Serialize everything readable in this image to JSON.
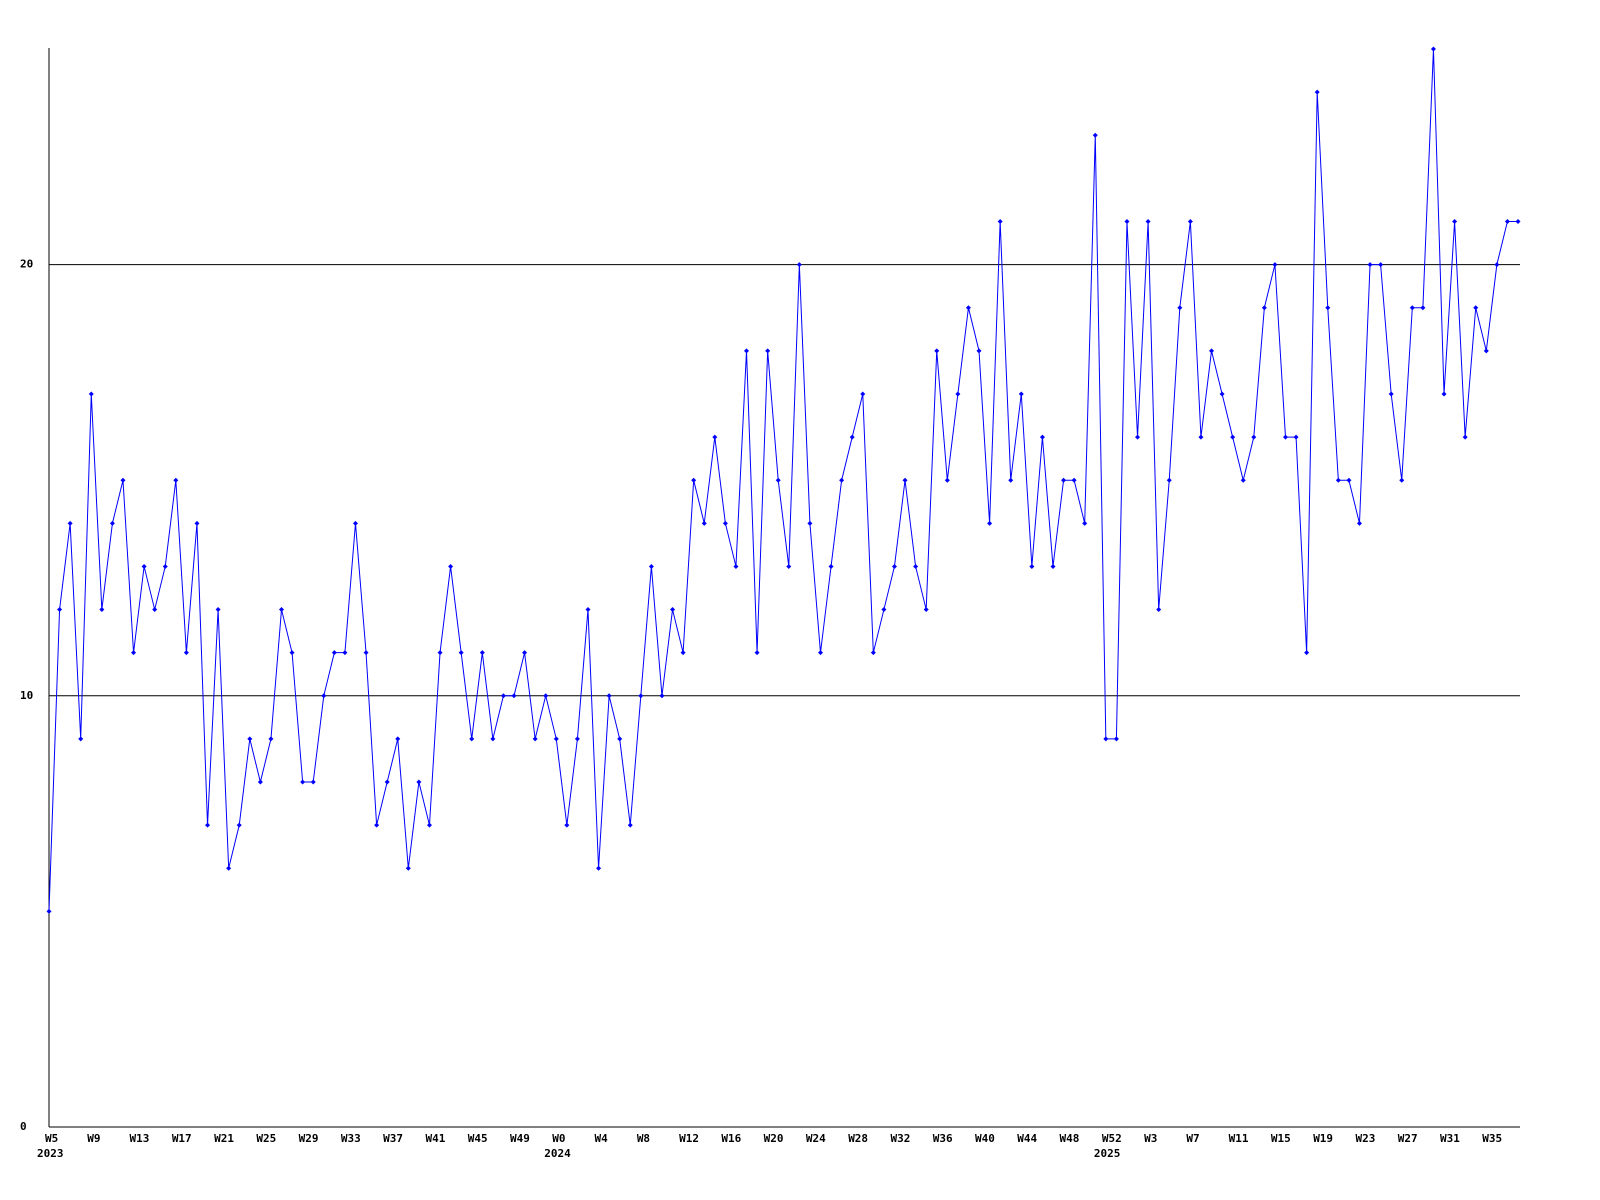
{
  "chart_data": {
    "type": "line",
    "categories": [
      "W5",
      null,
      null,
      null,
      "W9",
      null,
      null,
      null,
      "W13",
      null,
      null,
      null,
      "W17",
      null,
      null,
      null,
      "W21",
      null,
      null,
      null,
      "W25",
      null,
      null,
      null,
      "W29",
      null,
      null,
      null,
      "W33",
      null,
      null,
      null,
      "W37",
      null,
      null,
      null,
      "W41",
      null,
      null,
      null,
      "W45",
      null,
      null,
      null,
      "W49",
      null,
      null,
      null,
      "W0",
      null,
      null,
      null,
      "W4",
      null,
      null,
      null,
      "W8",
      null,
      null,
      null,
      "W12",
      null,
      null,
      null,
      "W16",
      null,
      null,
      null,
      "W20",
      null,
      null,
      null,
      "W24",
      null,
      null,
      null,
      "W28",
      null,
      null,
      null,
      "W32",
      null,
      null,
      null,
      "W36",
      null,
      null,
      null,
      "W40",
      null,
      null,
      null,
      "W44",
      null,
      null,
      null,
      "W48",
      null,
      null,
      null,
      "W52",
      null,
      null,
      null,
      "W3",
      null,
      null,
      null,
      "W7",
      null,
      null,
      null,
      "W11",
      null,
      null,
      null,
      "W15",
      null,
      null,
      null,
      "W19",
      null,
      null,
      null,
      "W23",
      null,
      null,
      null,
      "W27",
      null,
      null,
      null,
      "W31",
      null,
      null,
      null,
      "W35",
      null,
      null,
      null
    ],
    "category_years": [
      "2023",
      null,
      null,
      null,
      null,
      null,
      null,
      null,
      null,
      null,
      null,
      null,
      null,
      null,
      null,
      null,
      null,
      null,
      null,
      null,
      null,
      null,
      null,
      null,
      null,
      null,
      null,
      null,
      null,
      null,
      null,
      null,
      null,
      null,
      null,
      null,
      null,
      null,
      null,
      null,
      null,
      null,
      null,
      null,
      null,
      null,
      null,
      null,
      "2024",
      null,
      null,
      null,
      null,
      null,
      null,
      null,
      null,
      null,
      null,
      null,
      null,
      null,
      null,
      null,
      null,
      null,
      null,
      null,
      null,
      null,
      null,
      null,
      null,
      null,
      null,
      null,
      null,
      null,
      null,
      null,
      null,
      null,
      null,
      null,
      null,
      null,
      null,
      null,
      null,
      null,
      null,
      null,
      null,
      null,
      null,
      null,
      null,
      null,
      null,
      null,
      "2025",
      null,
      null,
      null,
      null,
      null,
      null,
      null,
      null,
      null,
      null,
      null,
      null,
      null,
      null,
      null,
      null,
      null,
      null,
      null,
      null,
      null,
      null,
      null,
      null,
      null,
      null,
      null,
      null,
      null,
      null,
      null,
      null,
      null,
      null,
      null,
      null,
      null,
      null,
      null
    ],
    "values": [
      5,
      12,
      14,
      9,
      17,
      12,
      14,
      15,
      11,
      13,
      12,
      13,
      15,
      11,
      14,
      7,
      12,
      6,
      7,
      9,
      8,
      9,
      12,
      11,
      8,
      8,
      10,
      11,
      11,
      14,
      11,
      7,
      8,
      9,
      6,
      8,
      7,
      11,
      13,
      11,
      9,
      11,
      9,
      10,
      10,
      11,
      9,
      10,
      9,
      7,
      9,
      12,
      6,
      10,
      9,
      7,
      10,
      13,
      10,
      12,
      11,
      15,
      14,
      16,
      14,
      13,
      18,
      11,
      18,
      15,
      13,
      20,
      14,
      11,
      13,
      15,
      16,
      17,
      11,
      12,
      13,
      15,
      13,
      12,
      18,
      15,
      17,
      19,
      18,
      14,
      21,
      15,
      17,
      13,
      16,
      13,
      15,
      15,
      14,
      23,
      9,
      9,
      21,
      16,
      21,
      12,
      15,
      19,
      21,
      16,
      18,
      17,
      16,
      15,
      16,
      19,
      20,
      16,
      16,
      11,
      24,
      19,
      15,
      15,
      14,
      20,
      20,
      17,
      15,
      19,
      19,
      25,
      17,
      21,
      16,
      19,
      18,
      20,
      21,
      21
    ],
    "color": "#0000ff",
    "ylim": [
      0,
      25
    ],
    "yticks": [
      0,
      10,
      20
    ],
    "grid": true
  }
}
